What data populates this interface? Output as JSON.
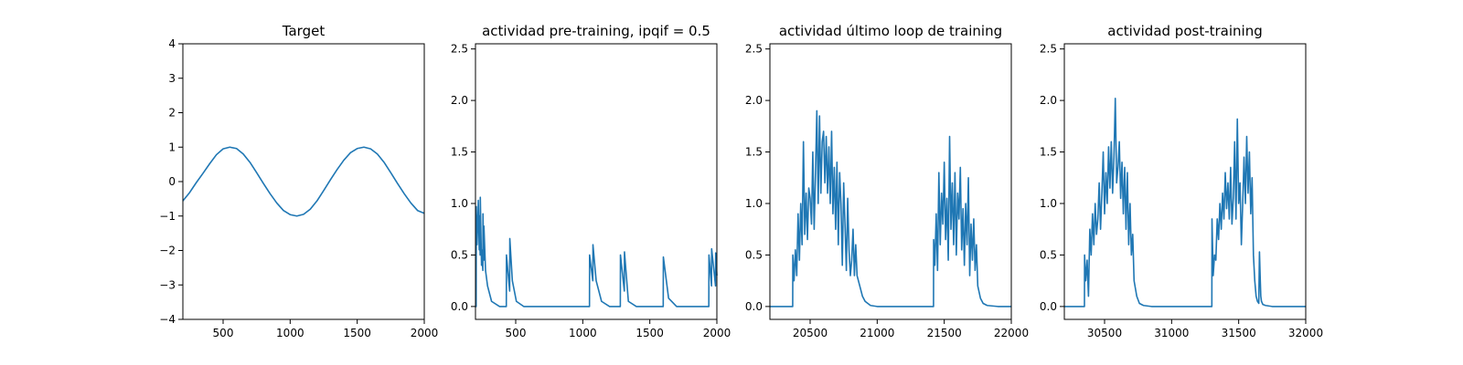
{
  "chart_data": [
    {
      "type": "line",
      "title": "Target",
      "xlabel": "",
      "ylabel": "",
      "xlim": [
        200,
        2000
      ],
      "ylim": [
        -4,
        4
      ],
      "xticks": [
        500,
        1000,
        1500,
        2000
      ],
      "yticks": [
        -4,
        -3,
        -2,
        -1,
        0,
        1,
        2,
        3,
        4
      ],
      "grid": false,
      "series": [
        {
          "color": "#1f77b4",
          "x": [
            200,
            250,
            300,
            350,
            400,
            450,
            500,
            550,
            600,
            650,
            700,
            750,
            800,
            850,
            900,
            950,
            1000,
            1050,
            1100,
            1150,
            1200,
            1250,
            1300,
            1350,
            1400,
            1450,
            1500,
            1550,
            1600,
            1650,
            1700,
            1750,
            1800,
            1850,
            1900,
            1950,
            2000
          ],
          "y": [
            -0.56,
            -0.32,
            -0.03,
            0.24,
            0.52,
            0.78,
            0.95,
            1.0,
            0.96,
            0.8,
            0.56,
            0.26,
            -0.05,
            -0.35,
            -0.62,
            -0.84,
            -0.96,
            -1.0,
            -0.95,
            -0.8,
            -0.56,
            -0.26,
            0.05,
            0.35,
            0.62,
            0.84,
            0.96,
            1.0,
            0.95,
            0.8,
            0.56,
            0.26,
            -0.05,
            -0.35,
            -0.62,
            -0.84,
            -0.92
          ]
        }
      ]
    },
    {
      "type": "line",
      "title": "actividad pre-training, ipqif = 0.5",
      "xlabel": "",
      "ylabel": "",
      "xlim": [
        200,
        2000
      ],
      "ylim": [
        -0.125,
        2.55
      ],
      "xticks": [
        500,
        1000,
        1500,
        2000
      ],
      "yticks": [
        0.0,
        0.5,
        1.0,
        1.5,
        2.0,
        2.5
      ],
      "yticklabels": [
        "0.0",
        "0.5",
        "1.0",
        "1.5",
        "2.0",
        "2.5"
      ],
      "grid": false,
      "series": [
        {
          "color": "#1f77b4",
          "x": [
            200,
            205,
            206,
            212,
            213,
            220,
            221,
            228,
            229,
            235,
            236,
            245,
            246,
            255,
            256,
            262,
            263,
            275,
            290,
            320,
            380,
            430,
            431,
            455,
            456,
            475,
            505,
            560,
            1000,
            1050,
            1051,
            1075,
            1076,
            1100,
            1140,
            1200,
            1280,
            1281,
            1310,
            1311,
            1340,
            1400,
            1600,
            1601,
            1640,
            1700,
            1940,
            1941,
            1960,
            1961,
            1990,
            1991,
            2000
          ],
          "y": [
            0,
            0,
            0.97,
            0.6,
            0.65,
            0.95,
            1.03,
            0.55,
            0.88,
            0.5,
            1.06,
            0.4,
            0.55,
            0.35,
            0.9,
            0.45,
            0.78,
            0.35,
            0.2,
            0.05,
            0,
            0,
            0.5,
            0.15,
            0.66,
            0.25,
            0.05,
            0,
            0,
            0,
            0.5,
            0.25,
            0.6,
            0.25,
            0.05,
            0,
            0,
            0.5,
            0.15,
            0.53,
            0.05,
            0,
            0,
            0.48,
            0.08,
            0,
            0,
            0.5,
            0.2,
            0.56,
            0.2,
            0.52,
            0.3
          ]
        }
      ]
    },
    {
      "type": "line",
      "title": "actividad último loop de training",
      "xlabel": "",
      "ylabel": "",
      "xlim": [
        20200,
        22000
      ],
      "ylim": [
        -0.125,
        2.55
      ],
      "xticks": [
        20500,
        21000,
        21500,
        22000
      ],
      "yticks": [
        0.0,
        0.5,
        1.0,
        1.5,
        2.0,
        2.5
      ],
      "yticklabels": [
        "0.0",
        "0.5",
        "1.0",
        "1.5",
        "2.0",
        "2.5"
      ],
      "grid": false,
      "series": [
        {
          "color": "#1f77b4",
          "x": [
            20200,
            20370,
            20371,
            20380,
            20390,
            20400,
            20410,
            20420,
            20430,
            20440,
            20450,
            20460,
            20470,
            20480,
            20490,
            20500,
            20510,
            20520,
            20530,
            20540,
            20550,
            20560,
            20570,
            20580,
            20590,
            20600,
            20610,
            20620,
            20630,
            20640,
            20650,
            20660,
            20670,
            20680,
            20690,
            20700,
            20710,
            20720,
            20730,
            20740,
            20750,
            20760,
            20770,
            20780,
            20790,
            20800,
            20810,
            20820,
            20830,
            20840,
            20850,
            20870,
            20890,
            20910,
            20950,
            21000,
            21420,
            21421,
            21430,
            21440,
            21450,
            21460,
            21470,
            21480,
            21490,
            21500,
            21510,
            21520,
            21530,
            21540,
            21550,
            21560,
            21570,
            21580,
            21590,
            21600,
            21610,
            21620,
            21630,
            21640,
            21650,
            21660,
            21670,
            21680,
            21690,
            21700,
            21710,
            21720,
            21730,
            21740,
            21750,
            21770,
            21790,
            21820,
            21900,
            22000
          ],
          "y": [
            0,
            0,
            0.5,
            0.25,
            0.55,
            0.3,
            0.9,
            0.45,
            1.0,
            0.6,
            1.6,
            0.7,
            1.1,
            0.65,
            1.15,
            1.05,
            0.8,
            1.5,
            0.75,
            1.3,
            1.9,
            1.0,
            1.85,
            1.1,
            1.6,
            1.7,
            1.2,
            1.65,
            1.1,
            1.55,
            1.0,
            1.7,
            0.9,
            1.35,
            0.75,
            1.4,
            0.6,
            1.3,
            1.0,
            0.4,
            1.2,
            0.8,
            0.35,
            1.05,
            0.55,
            0.3,
            0.45,
            0.75,
            0.3,
            0.6,
            0.3,
            0.2,
            0.1,
            0.05,
            0.01,
            0,
            0,
            0.65,
            0.4,
            0.9,
            0.35,
            1.3,
            0.6,
            1.1,
            0.8,
            1.4,
            0.65,
            1.05,
            0.45,
            1.65,
            0.75,
            1.2,
            0.6,
            1.3,
            0.5,
            1.1,
            0.85,
            1.35,
            0.55,
            0.95,
            0.4,
            1.0,
            0.6,
            1.25,
            0.3,
            0.8,
            0.45,
            0.85,
            0.35,
            0.6,
            0.2,
            0.08,
            0.03,
            0.01,
            0,
            0
          ]
        }
      ]
    },
    {
      "type": "line",
      "title": "actividad post-training",
      "xlabel": "",
      "ylabel": "",
      "xlim": [
        30200,
        32000
      ],
      "ylim": [
        -0.125,
        2.55
      ],
      "xticks": [
        30500,
        31000,
        31500,
        32000
      ],
      "yticks": [
        0.0,
        0.5,
        1.0,
        1.5,
        2.0,
        2.5
      ],
      "yticklabels": [
        "0.0",
        "0.5",
        "1.0",
        "1.5",
        "2.0",
        "2.5"
      ],
      "grid": false,
      "series": [
        {
          "color": "#1f77b4",
          "x": [
            30200,
            30350,
            30351,
            30360,
            30370,
            30380,
            30390,
            30400,
            30410,
            30420,
            30430,
            30440,
            30450,
            30460,
            30470,
            30480,
            30490,
            30500,
            30510,
            30520,
            30530,
            30540,
            30550,
            30560,
            30570,
            30580,
            30590,
            30600,
            30610,
            30620,
            30630,
            30640,
            30650,
            30660,
            30670,
            30680,
            30690,
            30700,
            30710,
            30720,
            30740,
            30760,
            30790,
            30850,
            31000,
            31300,
            31301,
            31310,
            31320,
            31330,
            31340,
            31350,
            31360,
            31370,
            31380,
            31390,
            31400,
            31410,
            31420,
            31430,
            31440,
            31450,
            31460,
            31470,
            31480,
            31490,
            31500,
            31510,
            31520,
            31530,
            31540,
            31550,
            31560,
            31570,
            31580,
            31590,
            31600,
            31610,
            31620,
            31630,
            31640,
            31650,
            31655,
            31660,
            31665,
            31670,
            31680,
            31700,
            31750,
            31850,
            32000
          ],
          "y": [
            0,
            0,
            0.5,
            0.25,
            0.45,
            0.1,
            0.75,
            0.5,
            0.9,
            0.6,
            1.0,
            0.7,
            0.85,
            1.2,
            0.75,
            1.1,
            1.5,
            0.9,
            1.3,
            1.0,
            1.55,
            1.15,
            1.6,
            1.1,
            1.45,
            2.02,
            1.2,
            1.35,
            1.6,
            1.05,
            1.4,
            0.9,
            1.35,
            0.75,
            1.3,
            0.6,
            1.0,
            0.5,
            0.7,
            0.25,
            0.1,
            0.03,
            0.01,
            0,
            0,
            0,
            0.85,
            0.3,
            0.5,
            0.45,
            0.85,
            0.65,
            1.0,
            0.75,
            1.1,
            0.85,
            1.3,
            0.95,
            1.2,
            0.85,
            1.35,
            0.8,
            1.05,
            1.6,
            0.85,
            1.82,
            1.0,
            1.2,
            0.6,
            1.0,
            1.45,
            1.0,
            1.65,
            1.1,
            1.5,
            0.9,
            1.25,
            0.5,
            0.25,
            0.1,
            0.05,
            0.03,
            0.53,
            0.3,
            0.1,
            0.05,
            0.02,
            0.01,
            0,
            0,
            0
          ]
        }
      ]
    }
  ]
}
